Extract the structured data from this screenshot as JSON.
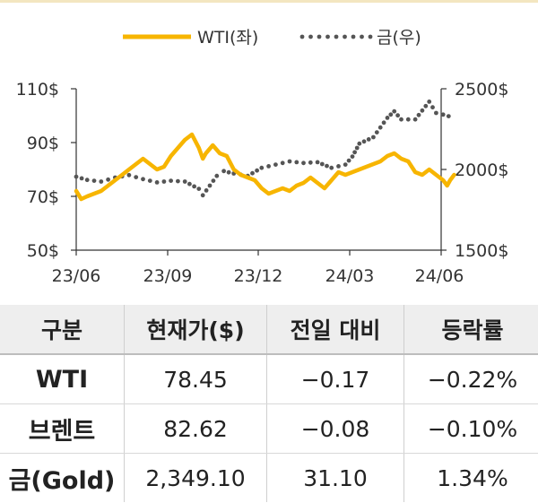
{
  "chart_data": {
    "type": "line",
    "legend": [
      {
        "name": "WTI(좌)",
        "style": "line",
        "color": "#f7b500"
      },
      {
        "name": "금(우)",
        "style": "dotted",
        "color": "#555555"
      }
    ],
    "legend_placement": "top-center",
    "x_ticks": [
      "23/06",
      "23/09",
      "23/12",
      "24/03",
      "24/06"
    ],
    "y_left": {
      "ticks": [
        "110$",
        "90$",
        "70$",
        "50$"
      ],
      "range": [
        50,
        110
      ]
    },
    "y_right": {
      "ticks": [
        "2500$",
        "2000$",
        "1500$"
      ],
      "range": [
        1500,
        2500
      ]
    },
    "grid": false,
    "series": [
      {
        "name": "WTI(좌)",
        "axis": "left",
        "color": "#f7b500",
        "x": [
          "2023-06-01",
          "2023-06-06",
          "2023-06-12",
          "2023-06-19",
          "2023-06-26",
          "2023-07-03",
          "2023-07-10",
          "2023-07-17",
          "2023-07-24",
          "2023-07-31",
          "2023-08-07",
          "2023-08-14",
          "2023-08-21",
          "2023-08-28",
          "2023-09-04",
          "2023-09-11",
          "2023-09-18",
          "2023-09-25",
          "2023-10-02",
          "2023-10-06",
          "2023-10-09",
          "2023-10-16",
          "2023-10-23",
          "2023-10-30",
          "2023-11-06",
          "2023-11-13",
          "2023-11-20",
          "2023-11-27",
          "2023-12-04",
          "2023-12-11",
          "2023-12-18",
          "2023-12-25",
          "2024-01-01",
          "2024-01-08",
          "2024-01-15",
          "2024-01-22",
          "2024-01-29",
          "2024-02-05",
          "2024-02-12",
          "2024-02-19",
          "2024-02-26",
          "2024-03-04",
          "2024-03-11",
          "2024-03-18",
          "2024-03-25",
          "2024-04-01",
          "2024-04-08",
          "2024-04-15",
          "2024-04-22",
          "2024-04-29",
          "2024-05-06",
          "2024-05-13",
          "2024-05-20",
          "2024-05-27",
          "2024-06-03",
          "2024-06-07",
          "2024-06-10",
          "2024-06-14"
        ],
        "y": [
          72,
          69,
          70,
          71,
          72,
          74,
          76,
          78,
          80,
          82,
          84,
          82,
          80,
          81,
          85,
          88,
          91,
          93,
          88,
          84,
          86,
          89,
          86,
          85,
          80,
          78,
          77,
          76,
          73,
          71,
          72,
          73,
          72,
          74,
          75,
          77,
          75,
          73,
          76,
          79,
          78,
          79,
          80,
          81,
          82,
          83,
          85,
          86,
          84,
          83,
          79,
          78,
          80,
          78,
          76,
          74,
          76,
          78
        ]
      },
      {
        "name": "금(우)",
        "axis": "right",
        "color": "#555555",
        "x": [
          "2023-06-01",
          "2023-06-12",
          "2023-06-26",
          "2023-07-10",
          "2023-07-24",
          "2023-08-07",
          "2023-08-21",
          "2023-09-04",
          "2023-09-18",
          "2023-10-02",
          "2023-10-06",
          "2023-10-13",
          "2023-10-20",
          "2023-10-27",
          "2023-11-06",
          "2023-11-20",
          "2023-12-04",
          "2023-12-18",
          "2024-01-01",
          "2024-01-15",
          "2024-01-29",
          "2024-02-12",
          "2024-02-26",
          "2024-03-04",
          "2024-03-11",
          "2024-03-25",
          "2024-04-08",
          "2024-04-15",
          "2024-04-22",
          "2024-05-06",
          "2024-05-20",
          "2024-05-27",
          "2024-06-03",
          "2024-06-14"
        ],
        "y": [
          1955,
          1935,
          1925,
          1950,
          1965,
          1940,
          1920,
          1930,
          1925,
          1880,
          1840,
          1900,
          1960,
          1990,
          1975,
          1960,
          2010,
          2030,
          2050,
          2040,
          2045,
          2010,
          2030,
          2080,
          2160,
          2200,
          2320,
          2360,
          2310,
          2310,
          2420,
          2350,
          2340,
          2320
        ]
      }
    ]
  },
  "table": {
    "headers": [
      "구분",
      "현재가($)",
      "전일 대비",
      "등락률"
    ],
    "rows": [
      [
        "WTI",
        "78.45",
        "−0.17",
        "−0.22%"
      ],
      [
        "브렌트",
        "82.62",
        "−0.08",
        "−0.10%"
      ],
      [
        "금(Gold)",
        "2,349.10",
        "31.10",
        "1.34%"
      ]
    ]
  }
}
